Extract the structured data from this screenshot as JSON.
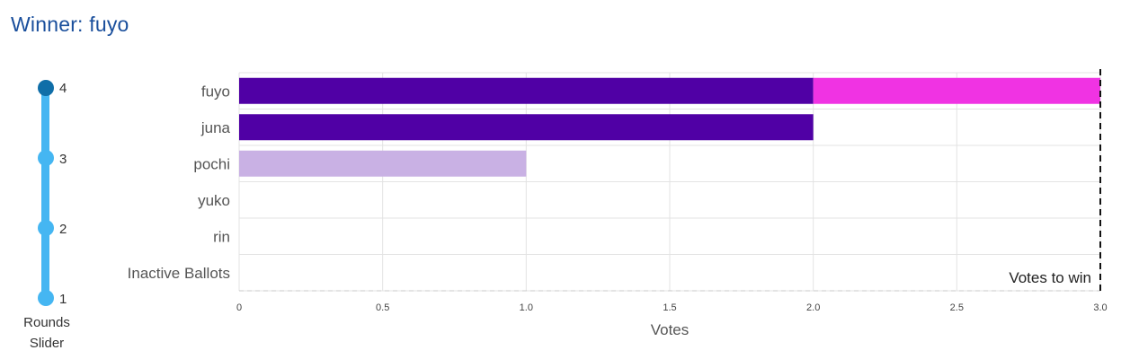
{
  "header": {
    "title": "Winner: fuyo"
  },
  "slider": {
    "label_line1": "Rounds",
    "label_line2": "Slider",
    "rounds": [
      "1",
      "2",
      "3",
      "4"
    ],
    "selected_round": 4
  },
  "chart_data": {
    "type": "bar",
    "orientation": "horizontal",
    "categories": [
      "fuyo",
      "juna",
      "pochi",
      "yuko",
      "rin",
      "Inactive Ballots"
    ],
    "series": [
      {
        "values": [
          2,
          2,
          1,
          0,
          0,
          0
        ],
        "color": "#5000a5"
      },
      {
        "values": [
          1,
          0,
          0,
          0,
          0,
          0
        ],
        "color": "#f033e3"
      }
    ],
    "segment_colors": {
      "pochi": "#c9b1e4"
    },
    "xlabel": "Votes",
    "xlim": [
      0,
      3
    ],
    "xticks": [
      "0",
      "0.5",
      "1.0",
      "1.5",
      "2.0",
      "2.5",
      "3.0"
    ],
    "xtick_values": [
      0,
      0.5,
      1,
      1.5,
      2,
      2.5,
      3
    ],
    "threshold": {
      "value": 3,
      "label": "Votes to win"
    },
    "grid": true
  }
}
